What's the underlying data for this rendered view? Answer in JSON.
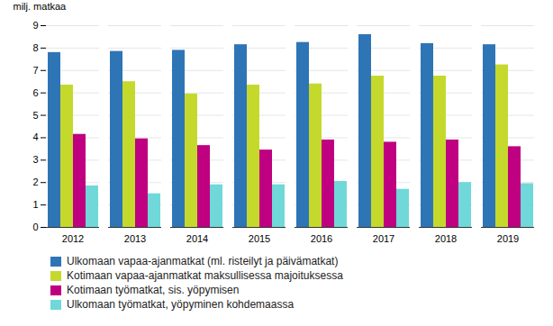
{
  "chart_data": {
    "type": "bar",
    "ylabel": "milj. matkaa",
    "categories": [
      "2012",
      "2013",
      "2014",
      "2015",
      "2016",
      "2017",
      "2018",
      "2019"
    ],
    "series": [
      {
        "name": "Ulkomaan vapaa-ajanmatkat (ml. risteilyt ja päivämatkat)",
        "color": "#2E75B6",
        "values": [
          7.8,
          7.85,
          7.9,
          8.15,
          8.25,
          8.6,
          8.2,
          8.15
        ]
      },
      {
        "name": "Kotimaan vapaa-ajanmatkat maksullisessa majoituksessa",
        "color": "#C5D92D",
        "values": [
          6.35,
          6.5,
          5.95,
          6.35,
          6.4,
          6.75,
          6.75,
          7.25
        ]
      },
      {
        "name": "Kotimaan työmatkat, sis. yöpymisen",
        "color": "#BF0080",
        "values": [
          4.15,
          3.95,
          3.65,
          3.45,
          3.9,
          3.8,
          3.9,
          3.6
        ]
      },
      {
        "name": "Ulkomaan työmatkat, yöpyminen kohdemaassa",
        "color": "#70D8D8",
        "values": [
          1.85,
          1.5,
          1.9,
          1.9,
          2.05,
          1.7,
          2.0,
          1.95
        ]
      }
    ],
    "ylim": [
      0,
      9
    ],
    "yticks": [
      0,
      1,
      2,
      3,
      4,
      5,
      6,
      7,
      8,
      9
    ],
    "grid": true,
    "legend": "bottom"
  }
}
